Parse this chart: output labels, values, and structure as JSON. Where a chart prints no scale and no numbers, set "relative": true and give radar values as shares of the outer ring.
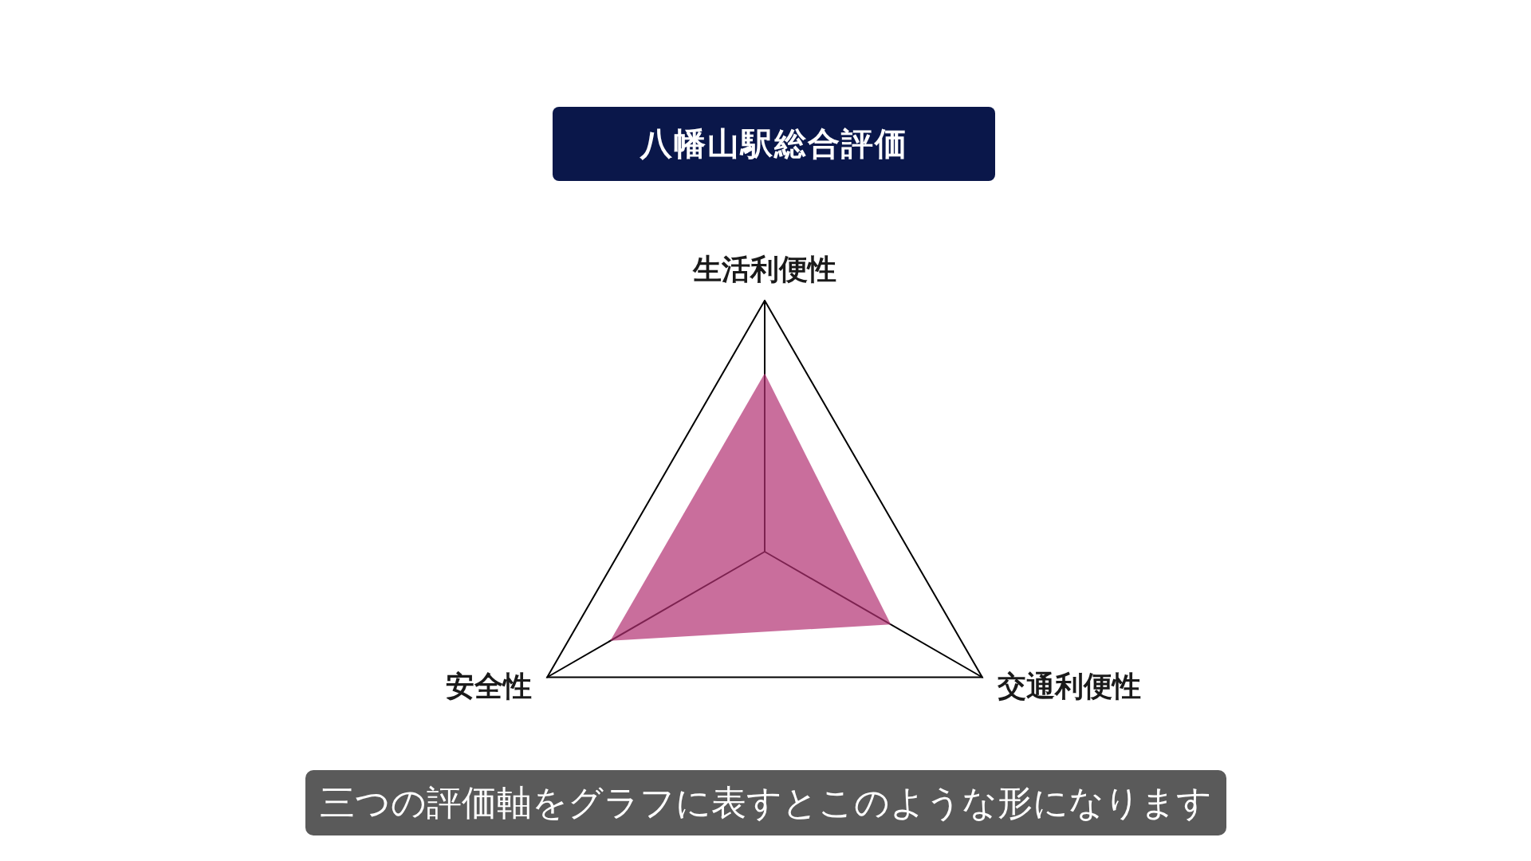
{
  "chart_data": {
    "type": "radar",
    "title": "八幡山駅総合評価",
    "categories": [
      "生活利便性",
      "交通利便性",
      "安全性"
    ],
    "relative": true,
    "series": [
      {
        "color": "#c96f9c",
        "values": [
          0.71,
          0.58,
          0.71
        ]
      }
    ],
    "marker": "none",
    "annotations": [
      "三つの評価軸をグラフに表すとこのような形になります"
    ]
  }
}
